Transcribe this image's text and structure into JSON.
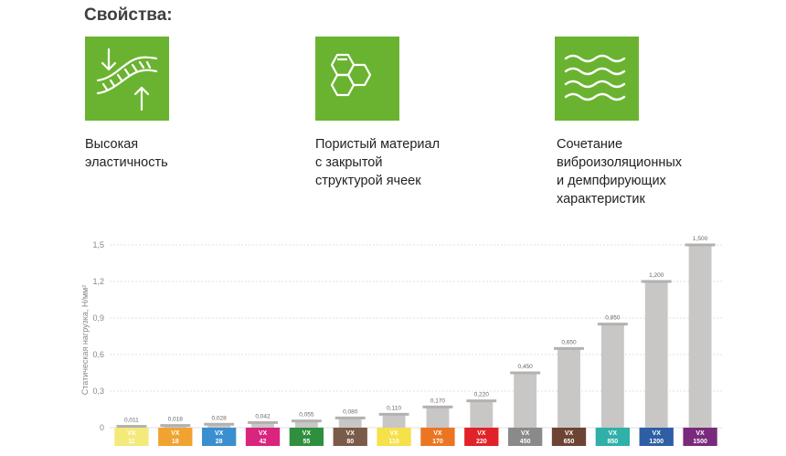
{
  "heading": "Свойства:",
  "features": [
    {
      "icon": "elasticity-icon",
      "text": "Высокая\nэластичность"
    },
    {
      "icon": "honeycomb-icon",
      "text": "Пористый материал\nс закрытой\nструктурой ячеек"
    },
    {
      "icon": "waves-icon",
      "text": "Сочетание\nвиброизоляционных\nи демпфирующих\nхарактеристик"
    }
  ],
  "colors": {
    "icon_bg": "#6ab330",
    "bar": "#c9c6c6",
    "bar_cap": "#b3b0b0",
    "grid": "#e2e2e2"
  },
  "chart_data": {
    "type": "bar",
    "ylabel": "Статическая нагрузка, Н/мм²",
    "ylim": [
      0,
      1.5
    ],
    "yticks": [
      "0",
      "0,3",
      "0,6",
      "0,9",
      "1,2",
      "1,5"
    ],
    "grid": true,
    "categories": [
      {
        "line1": "VX",
        "line2": "11",
        "color": "#f3ea7a"
      },
      {
        "line1": "VX",
        "line2": "18",
        "color": "#f0a330"
      },
      {
        "line1": "VX",
        "line2": "28",
        "color": "#3b8fd0"
      },
      {
        "line1": "VX",
        "line2": "42",
        "color": "#d9257e"
      },
      {
        "line1": "VX",
        "line2": "55",
        "color": "#2f8f3f"
      },
      {
        "line1": "VX",
        "line2": "80",
        "color": "#7a5a48"
      },
      {
        "line1": "VX",
        "line2": "110",
        "color": "#f5e14a"
      },
      {
        "line1": "VX",
        "line2": "170",
        "color": "#ec7524"
      },
      {
        "line1": "VX",
        "line2": "220",
        "color": "#e02328"
      },
      {
        "line1": "VX",
        "line2": "450",
        "color": "#8a8a8a"
      },
      {
        "line1": "VX",
        "line2": "650",
        "color": "#6d4433"
      },
      {
        "line1": "VX",
        "line2": "850",
        "color": "#2fb0a8"
      },
      {
        "line1": "VX",
        "line2": "1200",
        "color": "#2e5fa5"
      },
      {
        "line1": "VX",
        "line2": "1500",
        "color": "#7a2a7c"
      }
    ],
    "values": [
      0.011,
      0.018,
      0.028,
      0.042,
      0.055,
      0.08,
      0.11,
      0.17,
      0.22,
      0.45,
      0.65,
      0.85,
      1.2,
      1.5
    ],
    "value_labels": [
      "0,011",
      "0,018",
      "0,028",
      "0,042",
      "0,055",
      "0,080",
      "0,110",
      "0,170",
      "0,220",
      "0,450",
      "0,650",
      "0,850",
      "1,200",
      "1,500"
    ]
  }
}
